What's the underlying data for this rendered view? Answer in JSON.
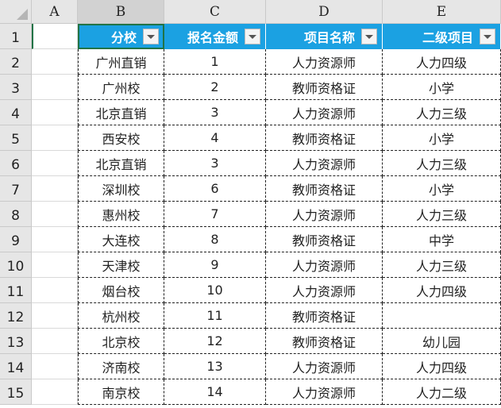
{
  "columns": [
    "A",
    "B",
    "C",
    "D",
    "E"
  ],
  "headers": [
    "分校",
    "报名金额",
    "项目名称",
    "二级项目"
  ],
  "rows": [
    [
      "广州直销",
      "1",
      "人力资源师",
      "人力四级"
    ],
    [
      "广州校",
      "2",
      "教师资格证",
      "小学"
    ],
    [
      "北京直销",
      "3",
      "人力资源师",
      "人力三级"
    ],
    [
      "西安校",
      "4",
      "教师资格证",
      "小学"
    ],
    [
      "北京直销",
      "3",
      "人力资源师",
      "人力三级"
    ],
    [
      "深圳校",
      "6",
      "教师资格证",
      "小学"
    ],
    [
      "惠州校",
      "7",
      "人力资源师",
      "人力三级"
    ],
    [
      "大连校",
      "8",
      "教师资格证",
      "中学"
    ],
    [
      "天津校",
      "9",
      "人力资源师",
      "人力三级"
    ],
    [
      "烟台校",
      "10",
      "人力资源师",
      "人力四级"
    ],
    [
      "杭州校",
      "11",
      "教师资格证",
      ""
    ],
    [
      "北京校",
      "12",
      "教师资格证",
      "幼儿园"
    ],
    [
      "济南校",
      "13",
      "人力资源师",
      "人力四级"
    ],
    [
      "南京校",
      "14",
      "人力资源师",
      "人力二级"
    ]
  ],
  "header_color": "#1ba1e2"
}
